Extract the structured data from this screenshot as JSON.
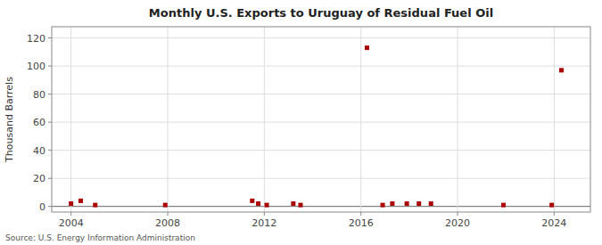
{
  "chart_data": {
    "type": "scatter",
    "title": "Monthly U.S. Exports to Uruguay of Residual Fuel Oil",
    "ylabel": "Thousand Barrels",
    "annotations": [
      "Source: U.S. Energy Information Administration"
    ],
    "color": "#aa0000",
    "marker": "square",
    "grid": true,
    "xlim": [
      2003.2,
      2025.5
    ],
    "ylim": [
      -4,
      128
    ],
    "xticks": [
      2004,
      2008,
      2012,
      2016,
      2020,
      2024
    ],
    "yticks": [
      0,
      20,
      40,
      60,
      80,
      100,
      120
    ],
    "x": [
      2004.0,
      2004.4,
      2005.0,
      2007.9,
      2011.5,
      2011.75,
      2012.1,
      2013.2,
      2013.5,
      2016.25,
      2016.9,
      2017.3,
      2017.9,
      2018.4,
      2018.9,
      2021.9,
      2023.9,
      2024.3
    ],
    "values": [
      2,
      4,
      1,
      1,
      4,
      2,
      1,
      2,
      1,
      113,
      1,
      2,
      2,
      2,
      2,
      1,
      1,
      97
    ]
  }
}
